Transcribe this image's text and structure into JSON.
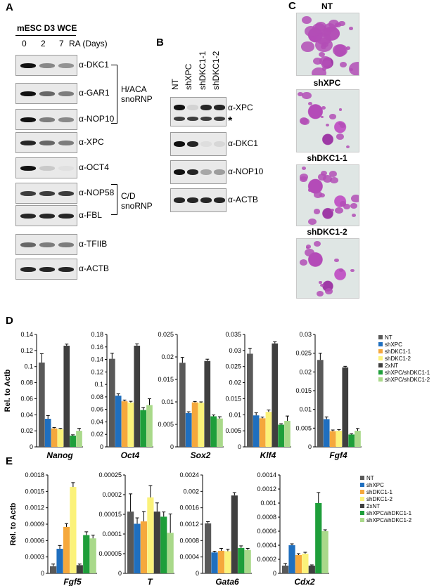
{
  "panels": {
    "A": {
      "letter": "A",
      "header": "mESC D3 WCE",
      "time_labels": [
        "0",
        "2",
        "7"
      ],
      "time_unit": "RA (Days)",
      "blots": [
        "α-DKC1",
        "α-GAR1",
        "α-NOP10",
        "α-XPC",
        "α-OCT4",
        "α-NOP58",
        "α-FBL",
        "α-TFIIB",
        "α-ACTB"
      ],
      "group1": [
        "H/ACA",
        "snoRNP"
      ],
      "group2": [
        "C/D",
        "snoRNP"
      ]
    },
    "B": {
      "letter": "B",
      "lanes": [
        "NT",
        "shXPC",
        "shDKC1-1",
        "shDKC1-2"
      ],
      "blots": [
        "α-XPC",
        "α-DKC1",
        "α-NOP10",
        "α-ACTB"
      ],
      "star": "*"
    },
    "C": {
      "letter": "C",
      "images": [
        "NT",
        "shXPC",
        "shDKC1-1",
        "shDKC1-2"
      ]
    },
    "D": {
      "letter": "D"
    },
    "E": {
      "letter": "E"
    }
  },
  "legend": [
    "NT",
    "shXPC",
    "shDKC1-1",
    "shDKC1-2",
    "2xNT",
    "shXPC/shDKC1-1",
    "shXPC/shDKC1-2"
  ],
  "colors": [
    "#595959",
    "#1f6fbf",
    "#f5a83c",
    "#fbf27a",
    "#3f3f3f",
    "#1e9e3a",
    "#a9d98a"
  ],
  "chart_data": [
    {
      "type": "bar",
      "panel": "D",
      "gene": "Nanog",
      "ylabel": "Rel. to Actb",
      "ylim": [
        0,
        0.14
      ],
      "yticks": [
        "0",
        "0.02",
        "0.04",
        "0.06",
        "0.08",
        "0.1",
        "0.12",
        "0.14"
      ],
      "values": [
        0.105,
        0.035,
        0.023,
        0.022,
        0.126,
        0.014,
        0.02
      ],
      "errors": [
        0.011,
        0.004,
        0.001,
        0.001,
        0.002,
        0.001,
        0.003
      ]
    },
    {
      "type": "bar",
      "panel": "D",
      "gene": "Oct4",
      "ylim": [
        0,
        0.18
      ],
      "yticks": [
        "0",
        "0.02",
        "0.04",
        "0.06",
        "0.08",
        "0.1",
        "0.12",
        "0.14",
        "0.16",
        "0.18"
      ],
      "values": [
        0.141,
        0.082,
        0.073,
        0.071,
        0.162,
        0.059,
        0.067
      ],
      "errors": [
        0.009,
        0.003,
        0.002,
        0.002,
        0.003,
        0.004,
        0.01
      ]
    },
    {
      "type": "bar",
      "panel": "D",
      "gene": "Sox2",
      "ylim": [
        0,
        0.025
      ],
      "yticks": [
        "0",
        "0.005",
        "0.01",
        "0.015",
        "0.02",
        "0.025"
      ],
      "values": [
        0.0187,
        0.0075,
        0.0099,
        0.0098,
        0.0191,
        0.0068,
        0.0063
      ],
      "errors": [
        0.0012,
        0.0003,
        0.0002,
        0.0002,
        0.0004,
        0.0003,
        0.0004
      ]
    },
    {
      "type": "bar",
      "panel": "D",
      "gene": "Klf4",
      "ylim": [
        0,
        0.035
      ],
      "yticks": [
        "0",
        "0.005",
        "0.01",
        "0.015",
        "0.02",
        "0.025",
        "0.03",
        "0.035"
      ],
      "values": [
        0.029,
        0.0098,
        0.0089,
        0.0109,
        0.0322,
        0.0069,
        0.0081
      ],
      "errors": [
        0.0017,
        0.0008,
        0.0004,
        0.0006,
        0.0005,
        0.0003,
        0.0015
      ]
    },
    {
      "type": "bar",
      "panel": "D",
      "gene": "Fgf4",
      "ylim": [
        0,
        0.03
      ],
      "yticks": [
        "0",
        "0.005",
        "0.01",
        "0.015",
        "0.02",
        "0.025",
        "0.03"
      ],
      "values": [
        0.0232,
        0.0074,
        0.0042,
        0.0043,
        0.0212,
        0.0033,
        0.0043
      ],
      "errors": [
        0.0018,
        0.0006,
        0.0003,
        0.0003,
        0.0003,
        0.0002,
        0.0006
      ]
    },
    {
      "type": "bar",
      "panel": "E",
      "gene": "Fgf5",
      "ylabel": "Rel. to Actb",
      "ylim": [
        0,
        0.0018
      ],
      "yticks": [
        "0",
        "0.0003",
        "0.0006",
        "0.0009",
        "0.0012",
        "0.0015",
        "0.0018"
      ],
      "values": [
        0.00013,
        0.00045,
        0.00085,
        0.00158,
        0.00015,
        0.0007,
        0.00064
      ],
      "errors": [
        4e-05,
        6e-05,
        6e-05,
        8e-05,
        2e-05,
        6e-05,
        6e-05
      ]
    },
    {
      "type": "bar",
      "panel": "E",
      "gene": "T",
      "ylim": [
        0,
        0.00025
      ],
      "yticks": [
        "0",
        "0.00005",
        "0.0001",
        "0.00015",
        "0.0002",
        "0.00025"
      ],
      "values": [
        0.000157,
        0.000126,
        0.000132,
        0.000193,
        0.000157,
        0.000144,
        0.000103
      ],
      "errors": [
        4.5e-05,
        1.5e-05,
        2.5e-05,
        3e-05,
        2.2e-05,
        1.2e-05,
        4.8e-05
      ]
    },
    {
      "type": "bar",
      "panel": "E",
      "gene": "Gata6",
      "ylim": [
        0,
        0.0024
      ],
      "yticks": [
        "0",
        "0.0004",
        "0.0008",
        "0.0012",
        "0.0016",
        "0.002",
        "0.0024"
      ],
      "values": [
        0.00122,
        0.00051,
        0.00055,
        0.00054,
        0.0019,
        0.00062,
        0.00057
      ],
      "errors": [
        4e-05,
        3e-05,
        6e-05,
        5e-05,
        7e-05,
        5e-05,
        4e-05
      ]
    },
    {
      "type": "bar",
      "panel": "E",
      "gene": "Cdx2",
      "ylim": [
        0,
        0.0014
      ],
      "yticks": [
        "0",
        "0.0002",
        "0.0004",
        "0.0006",
        "0.0008",
        "0.001",
        "0.0012",
        "0.0014"
      ],
      "values": [
        0.00011,
        0.0004,
        0.00026,
        0.00028,
        0.00011,
        0.001,
        0.0006
      ],
      "errors": [
        3e-05,
        2e-05,
        2e-05,
        2e-05,
        1e-05,
        0.00015,
        2e-05
      ]
    }
  ]
}
